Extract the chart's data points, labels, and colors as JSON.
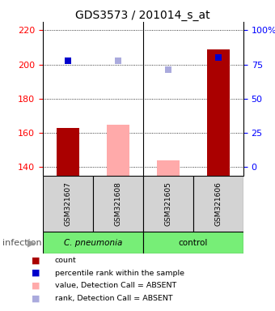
{
  "title": "GDS3573 / 201014_s_at",
  "samples": [
    "GSM321607",
    "GSM321608",
    "GSM321605",
    "GSM321606"
  ],
  "ylim_left": [
    135,
    225
  ],
  "yticks_left": [
    140,
    160,
    180,
    200,
    220
  ],
  "yticks_right": [
    0,
    25,
    50,
    75,
    100
  ],
  "ytick_labels_right": [
    "0",
    "25",
    "50",
    "75",
    "100%"
  ],
  "bar_values": [
    163,
    165,
    144,
    209
  ],
  "bar_absent": [
    false,
    true,
    true,
    false
  ],
  "bar_color_present": "#aa0000",
  "bar_color_absent": "#ffaaaa",
  "percentile_values": [
    202,
    202,
    197,
    204
  ],
  "percentile_absent": [
    false,
    true,
    true,
    false
  ],
  "percentile_color_present": "#0000cc",
  "percentile_color_absent": "#aaaadd",
  "baseline": 135,
  "bar_width": 0.45,
  "dot_size": 40,
  "legend_items": [
    {
      "label": "count",
      "color": "#aa0000"
    },
    {
      "label": "percentile rank within the sample",
      "color": "#0000cc"
    },
    {
      "label": "value, Detection Call = ABSENT",
      "color": "#ffaaaa"
    },
    {
      "label": "rank, Detection Call = ABSENT",
      "color": "#aaaadd"
    }
  ],
  "group_label_left": "C. pneumonia",
  "group_label_right": "control",
  "group_color": "#77ee77",
  "sample_box_color": "#d3d3d3",
  "infection_label": "infection",
  "fig_w": 3.4,
  "fig_h": 3.84,
  "dpi": 100
}
